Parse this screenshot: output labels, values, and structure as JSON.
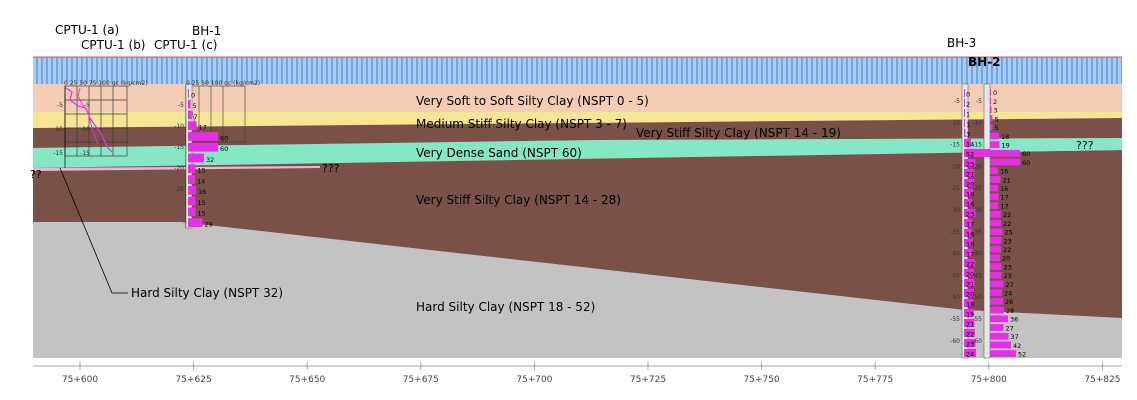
{
  "boreholes": {
    "cptu_a": "CPTU-1 (a)",
    "cptu_b": "CPTU-1 (b)",
    "bh1": "BH-1",
    "cptu_c": "CPTU-1 (c)",
    "bh3": "BH-3",
    "bh2": "BH-2"
  },
  "layers": {
    "very_soft": "Very Soft to Soft Silty Clay (NSPT 0 - 5)",
    "medium_stiff": "Medium Stiff Silty Clay (NSPT 3 - 7)",
    "very_stiff_upper": "Very Stiff Silty Clay (NSPT 14 - 19)",
    "very_dense_sand": "Very Dense Sand (NSPT 60)",
    "very_stiff_lower": "Very Stiff Silty Clay (NSPT 14 - 28)",
    "hard_right": "Hard Silty Clay (NSPT 18 - 52)",
    "hard_left": "Hard Silty Clay (NSPT 32)"
  },
  "unknown_marks": {
    "left": "??",
    "mid": "???",
    "right": "???"
  },
  "cpt_scale_labels": {
    "left": "0  25 50 75 100 qc (kg/cm2)",
    "mid": "0  25 50 100   qc (kg/cm2)"
  },
  "stations": [
    "75+600",
    "75+625",
    "75+650",
    "75+675",
    "75+700",
    "75+725",
    "75+750",
    "75+775",
    "75+800",
    "75+825"
  ],
  "depth_ticks": {
    "cptu": [
      "-5",
      "-10",
      "-15"
    ],
    "bh1": [
      "-5",
      "-10",
      "-15",
      "-20",
      "-25"
    ],
    "bh3": [
      "-5",
      "-10",
      "-15",
      "-20",
      "-25",
      "-30",
      "-35",
      "-40",
      "-45",
      "-50",
      "-55",
      "-60"
    ]
  },
  "nspt_values": {
    "bh1": [
      "0",
      "5",
      "7",
      "17",
      "60",
      "60",
      "32",
      "15",
      "14",
      "16",
      "15",
      "15",
      "29"
    ],
    "bh3": [
      "0",
      "2",
      "1",
      "1",
      "3",
      "14",
      "52",
      "23",
      "21",
      "20",
      "18",
      "16",
      "23",
      "17",
      "16",
      "18",
      "17",
      "22",
      "20",
      "21",
      "20",
      "18",
      "19",
      "21",
      "22",
      "23",
      "24"
    ],
    "bh2": [
      "0",
      "2",
      "3",
      "5",
      "5",
      "18",
      "19",
      "60",
      "60",
      "16",
      "21",
      "16",
      "17",
      "17",
      "22",
      "22",
      "25",
      "23",
      "22",
      "20",
      "23",
      "23",
      "27",
      "24",
      "26",
      "28",
      "36",
      "27",
      "37",
      "42",
      "52"
    ]
  },
  "colors": {
    "water": "#9fc7ef",
    "water_hatch": "#2d78cf",
    "very_soft": "#f5cdb4",
    "medium_stiff": "#f7e596",
    "very_dense_sand": "#86e7c4",
    "very_stiff": "#7a5148",
    "hard": "#c3c3c3",
    "nspt_bar": "#e62ee6",
    "surface_line": "#e05050"
  }
}
